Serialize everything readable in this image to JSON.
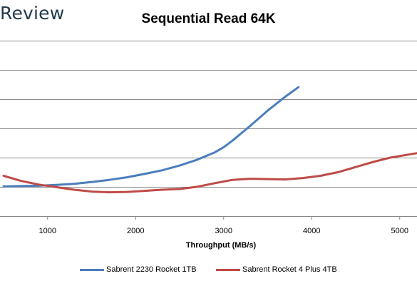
{
  "brand": {
    "text": "Review"
  },
  "chart_data": {
    "type": "line",
    "title": "Sequential Read 64K",
    "xlabel": "Throughput (MB/s)",
    "ylabel": "",
    "xlim": [
      500,
      5200
    ],
    "x_ticks": [
      1000,
      2000,
      3000,
      4000,
      5000
    ],
    "grid": "horizontal",
    "legend_position": "bottom",
    "series": [
      {
        "name": "Sabrent 2230 Rocket 1TB",
        "color": "#4a7ebb",
        "points": [
          [
            500,
            0.405
          ],
          [
            700,
            0.41
          ],
          [
            900,
            0.415
          ],
          [
            1100,
            0.425
          ],
          [
            1300,
            0.44
          ],
          [
            1500,
            0.465
          ],
          [
            1700,
            0.495
          ],
          [
            1900,
            0.53
          ],
          [
            2100,
            0.575
          ],
          [
            2300,
            0.625
          ],
          [
            2500,
            0.69
          ],
          [
            2700,
            0.77
          ],
          [
            2900,
            0.87
          ],
          [
            3000,
            0.94
          ],
          [
            3100,
            1.03
          ],
          [
            3300,
            1.23
          ],
          [
            3500,
            1.44
          ],
          [
            3700,
            1.63
          ],
          [
            3850,
            1.76
          ]
        ]
      },
      {
        "name": "Sabrent Rocket 4 Plus 4TB",
        "color": "#be4b48",
        "points": [
          [
            500,
            0.55
          ],
          [
            700,
            0.48
          ],
          [
            900,
            0.43
          ],
          [
            1100,
            0.395
          ],
          [
            1300,
            0.36
          ],
          [
            1500,
            0.335
          ],
          [
            1700,
            0.325
          ],
          [
            1900,
            0.33
          ],
          [
            2100,
            0.345
          ],
          [
            2300,
            0.36
          ],
          [
            2500,
            0.37
          ],
          [
            2700,
            0.4
          ],
          [
            2900,
            0.45
          ],
          [
            3100,
            0.495
          ],
          [
            3300,
            0.51
          ],
          [
            3500,
            0.505
          ],
          [
            3700,
            0.5
          ],
          [
            3900,
            0.52
          ],
          [
            4100,
            0.55
          ],
          [
            4300,
            0.6
          ],
          [
            4500,
            0.67
          ],
          [
            4700,
            0.74
          ],
          [
            4900,
            0.8
          ],
          [
            5200,
            0.86
          ]
        ]
      }
    ],
    "ylim": [
      0,
      2.2
    ]
  }
}
